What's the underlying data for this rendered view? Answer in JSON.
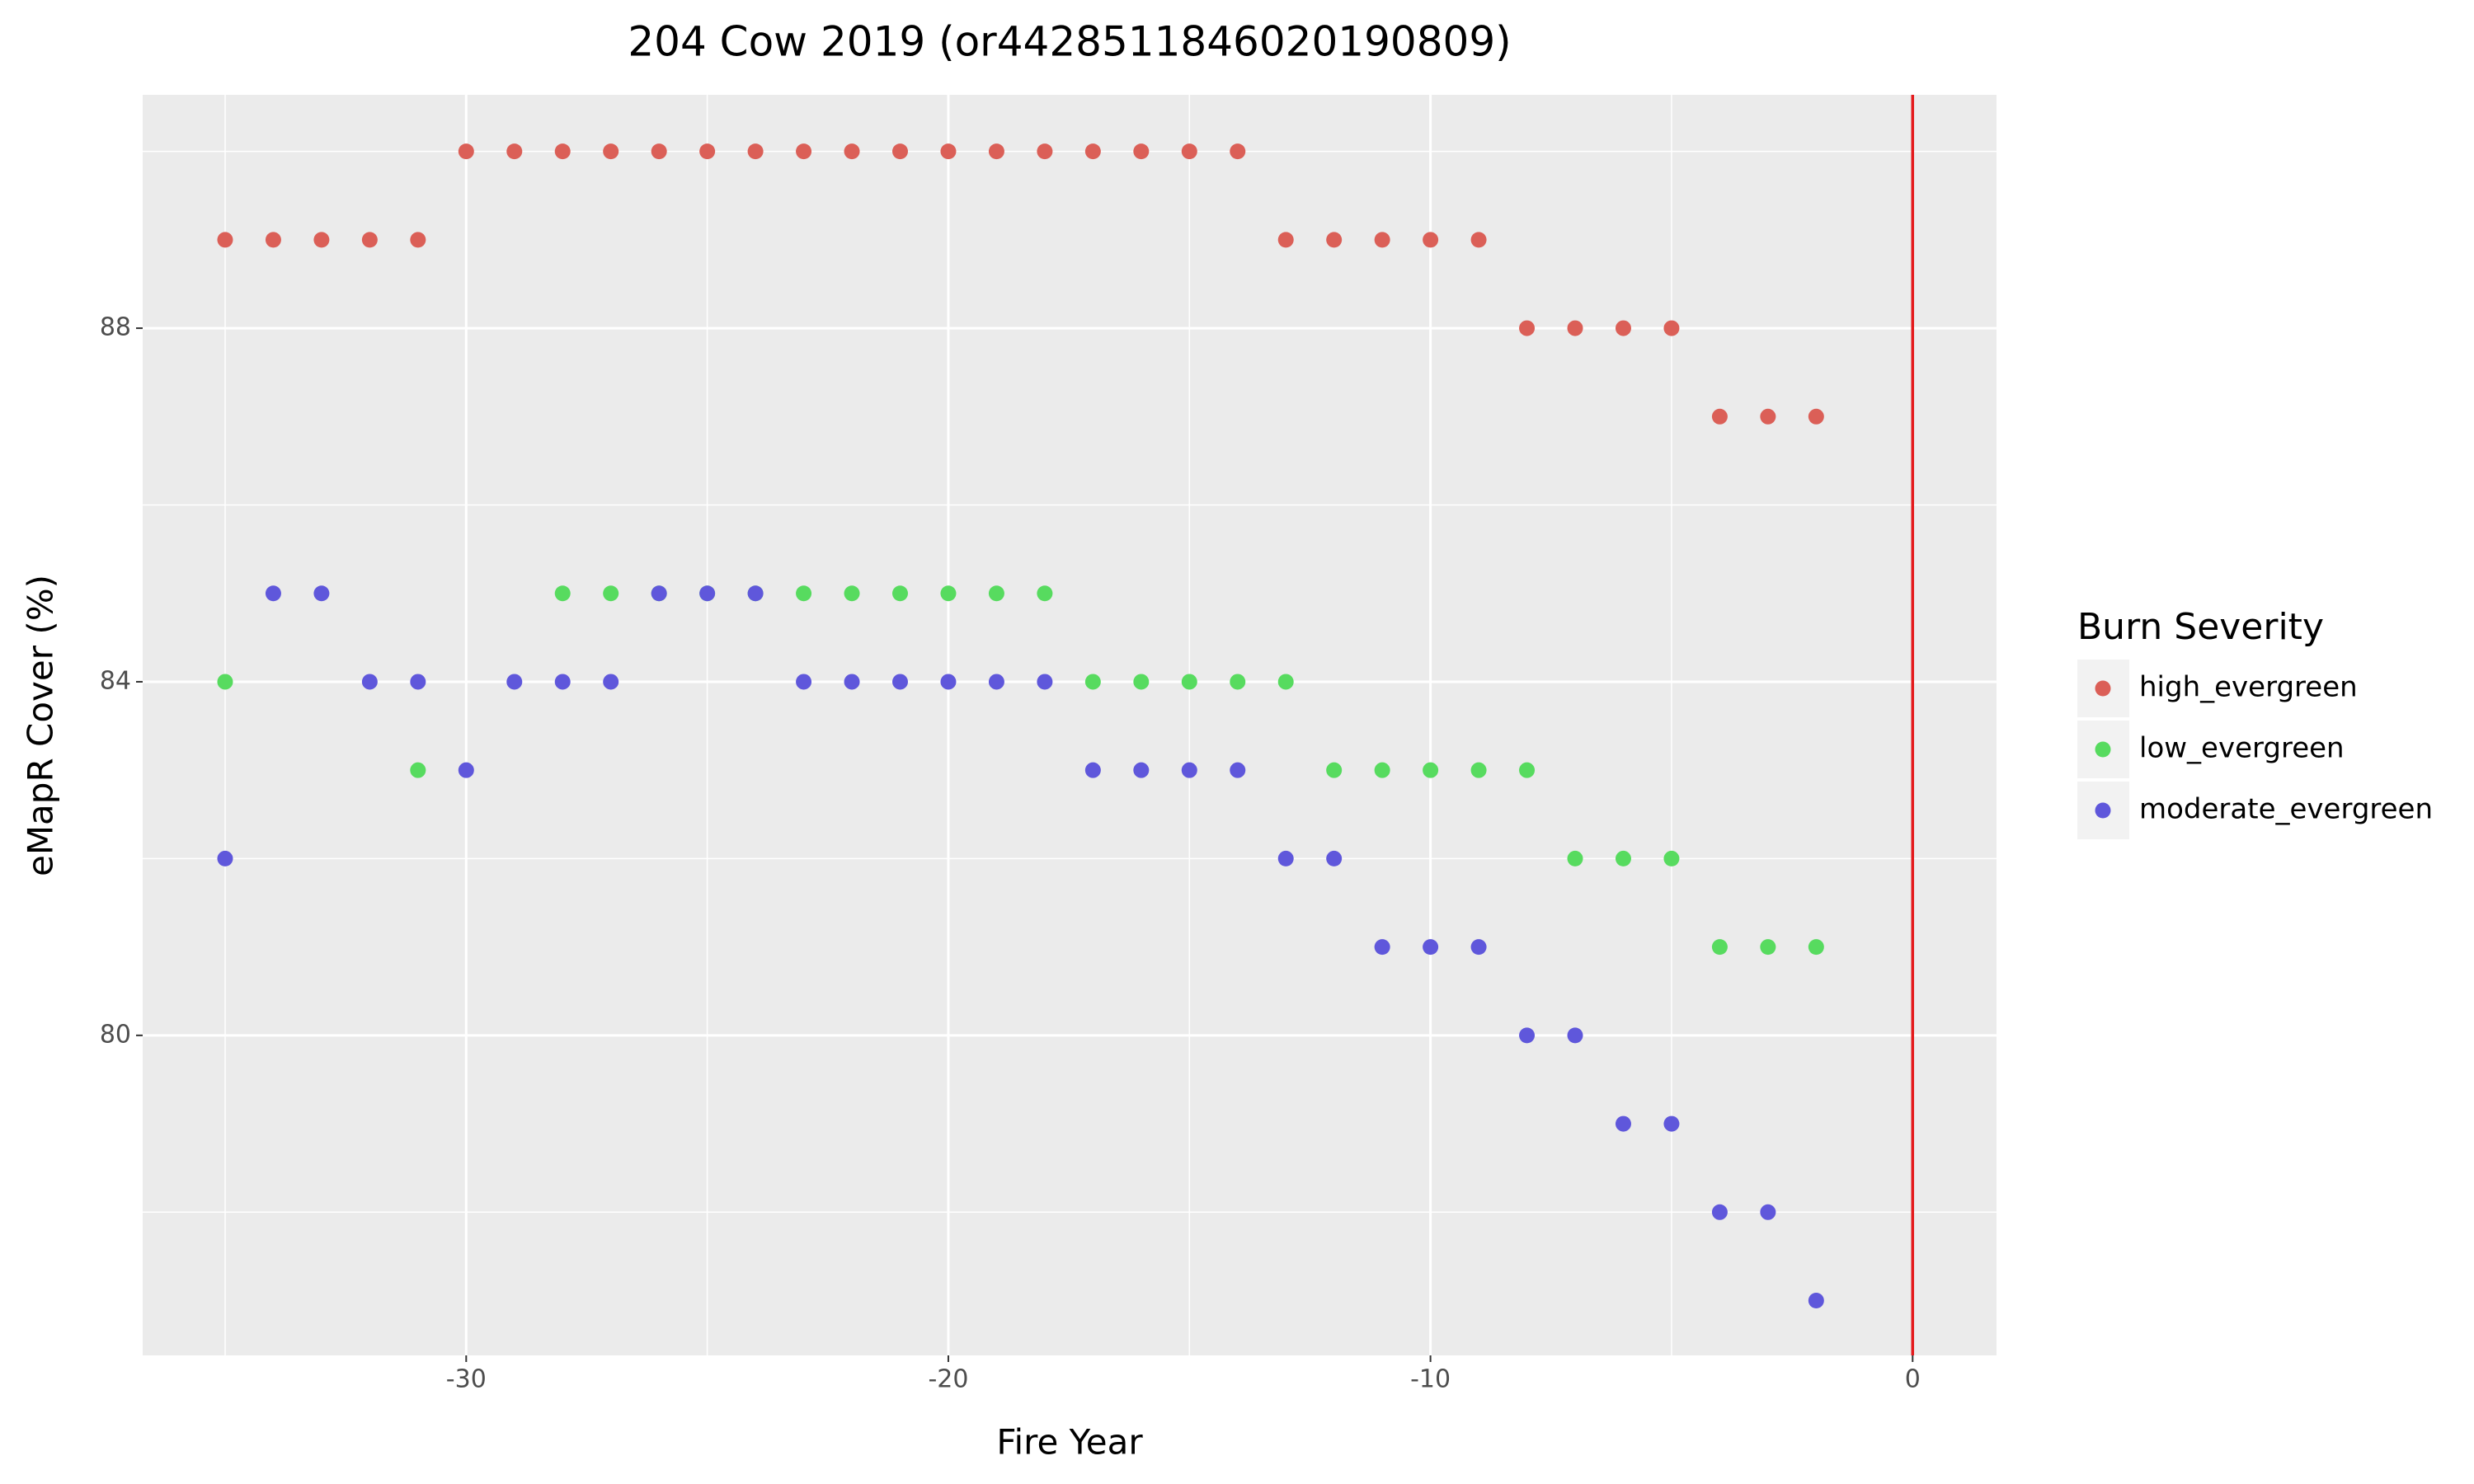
{
  "chart_data": {
    "type": "scatter",
    "title": "204 Cow 2019 (or4428511846020190809)",
    "x_label": "Fire Year",
    "y_label": "eMapR Cover (%)",
    "legend_title": "Burn Severity",
    "legend_position": "right",
    "xlim": [
      -36.71,
      1.74
    ],
    "ylim": [
      76.38,
      90.64
    ],
    "xticks": [
      -30,
      -20,
      -10,
      0
    ],
    "yticks": [
      80,
      84,
      88
    ],
    "xminor": [
      -35,
      -25,
      -15,
      -5
    ],
    "yminor": [
      78,
      82,
      86,
      90
    ],
    "grid": true,
    "reference_line": {
      "x": 0,
      "color": "#e41a1c"
    },
    "series": [
      {
        "name": "high_evergreen",
        "color": "#db5f57",
        "x": [
          -35,
          -34,
          -33,
          -32,
          -31,
          -30,
          -29,
          -28,
          -27,
          -26,
          -25,
          -24,
          -23,
          -22,
          -21,
          -20,
          -19,
          -18,
          -17,
          -16,
          -15,
          -14,
          -13,
          -12,
          -11,
          -10,
          -9,
          -8,
          -7,
          -6,
          -5,
          -4,
          -3,
          -2
        ],
        "values": [
          89,
          89,
          89,
          89,
          89,
          90,
          90,
          90,
          90,
          90,
          90,
          90,
          90,
          90,
          90,
          90,
          90,
          90,
          90,
          90,
          90,
          90,
          89,
          89,
          89,
          89,
          89,
          88,
          88,
          88,
          88,
          87,
          87,
          87
        ]
      },
      {
        "name": "low_evergreen",
        "color": "#57db5f",
        "x": [
          -35,
          -31,
          -28,
          -27,
          -26,
          -25,
          -24,
          -23,
          -22,
          -21,
          -20,
          -19,
          -18,
          -17,
          -16,
          -15,
          -14,
          -13,
          -12,
          -11,
          -10,
          -9,
          -8,
          -7,
          -6,
          -5,
          -4,
          -3,
          -2
        ],
        "values": [
          84,
          83,
          85,
          85,
          85,
          85,
          85,
          85,
          85,
          85,
          85,
          85,
          85,
          84,
          84,
          84,
          84,
          84,
          83,
          83,
          83,
          83,
          83,
          82,
          82,
          82,
          81,
          81,
          81
        ]
      },
      {
        "name": "moderate_evergreen",
        "color": "#5f57db",
        "x": [
          -35,
          -34,
          -33,
          -32,
          -31,
          -30,
          -29,
          -28,
          -27,
          -26,
          -25,
          -24,
          -23,
          -22,
          -21,
          -20,
          -19,
          -18,
          -17,
          -16,
          -15,
          -14,
          -13,
          -12,
          -11,
          -10,
          -9,
          -8,
          -7,
          -6,
          -5,
          -4,
          -3,
          -2
        ],
        "values": [
          82,
          85,
          85,
          84,
          84,
          83,
          84,
          84,
          84,
          85,
          85,
          85,
          84,
          84,
          84,
          84,
          84,
          84,
          83,
          83,
          83,
          83,
          82,
          82,
          81,
          81,
          81,
          80,
          80,
          79,
          79,
          78,
          78,
          77
        ]
      }
    ]
  }
}
